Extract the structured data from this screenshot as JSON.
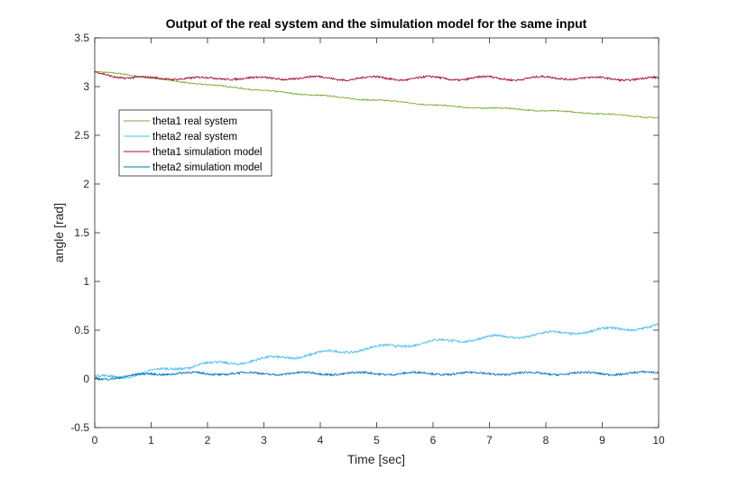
{
  "chart_data": {
    "type": "line",
    "title": "Output of the real system and the simulation model for the same input",
    "xlabel": "Time [sec]",
    "ylabel": "angle [rad]",
    "xlim": [
      0,
      10
    ],
    "ylim": [
      -0.5,
      3.5
    ],
    "xticks": [
      0,
      1,
      2,
      3,
      4,
      5,
      6,
      7,
      8,
      9,
      10
    ],
    "yticks": [
      -0.5,
      0,
      0.5,
      1,
      1.5,
      2,
      2.5,
      3,
      3.5
    ],
    "xtick_labels": [
      "0",
      "1",
      "2",
      "3",
      "4",
      "5",
      "6",
      "7",
      "8",
      "9",
      "10"
    ],
    "ytick_labels": [
      "-0.5",
      "0",
      "0.5",
      "1",
      "1.5",
      "2",
      "2.5",
      "3",
      "3.5"
    ],
    "grid": false,
    "legend_position": "upper-left",
    "series": [
      {
        "name": "theta1 real system",
        "color": "#77AC30",
        "x": [
          0,
          0.5,
          1,
          1.5,
          2,
          2.5,
          3,
          3.5,
          4,
          4.5,
          5,
          5.5,
          6,
          6.5,
          7,
          7.5,
          8,
          8.5,
          9,
          9.5,
          10
        ],
        "y": [
          3.15,
          3.13,
          3.09,
          3.05,
          3.02,
          2.99,
          2.96,
          2.93,
          2.91,
          2.88,
          2.86,
          2.84,
          2.81,
          2.79,
          2.78,
          2.77,
          2.75,
          2.74,
          2.72,
          2.7,
          2.68
        ]
      },
      {
        "name": "theta2 real system",
        "color": "#4DBEEE",
        "x": [
          0,
          0.5,
          1,
          1.5,
          2,
          2.5,
          3,
          3.5,
          4,
          4.5,
          5,
          5.5,
          6,
          6.5,
          7,
          7.5,
          8,
          8.5,
          9,
          9.5,
          10
        ],
        "y": [
          0.01,
          0.03,
          0.07,
          0.12,
          0.15,
          0.17,
          0.2,
          0.23,
          0.26,
          0.29,
          0.32,
          0.35,
          0.38,
          0.4,
          0.42,
          0.44,
          0.46,
          0.48,
          0.5,
          0.52,
          0.54
        ]
      },
      {
        "name": "theta1 simulation model",
        "color": "#A2142F",
        "x": [
          0,
          0.5,
          1,
          1.5,
          2,
          2.5,
          3,
          3.5,
          4,
          4.5,
          5,
          5.5,
          6,
          6.5,
          7,
          7.5,
          8,
          8.5,
          9,
          9.5,
          10
        ],
        "y": [
          3.14,
          3.1,
          3.08,
          3.09,
          3.08,
          3.09,
          3.08,
          3.09,
          3.09,
          3.08,
          3.09,
          3.08,
          3.09,
          3.08,
          3.09,
          3.08,
          3.09,
          3.09,
          3.08,
          3.08,
          3.08
        ]
      },
      {
        "name": "theta2 simulation model",
        "color": "#0072BD",
        "x": [
          0,
          0.5,
          1,
          1.5,
          2,
          2.5,
          3,
          3.5,
          4,
          4.5,
          5,
          5.5,
          6,
          6.5,
          7,
          7.5,
          8,
          8.5,
          9,
          9.5,
          10
        ],
        "y": [
          0.0,
          0.02,
          0.05,
          0.06,
          0.05,
          0.06,
          0.05,
          0.06,
          0.05,
          0.06,
          0.05,
          0.06,
          0.05,
          0.06,
          0.05,
          0.06,
          0.05,
          0.06,
          0.05,
          0.06,
          0.06
        ]
      }
    ]
  }
}
